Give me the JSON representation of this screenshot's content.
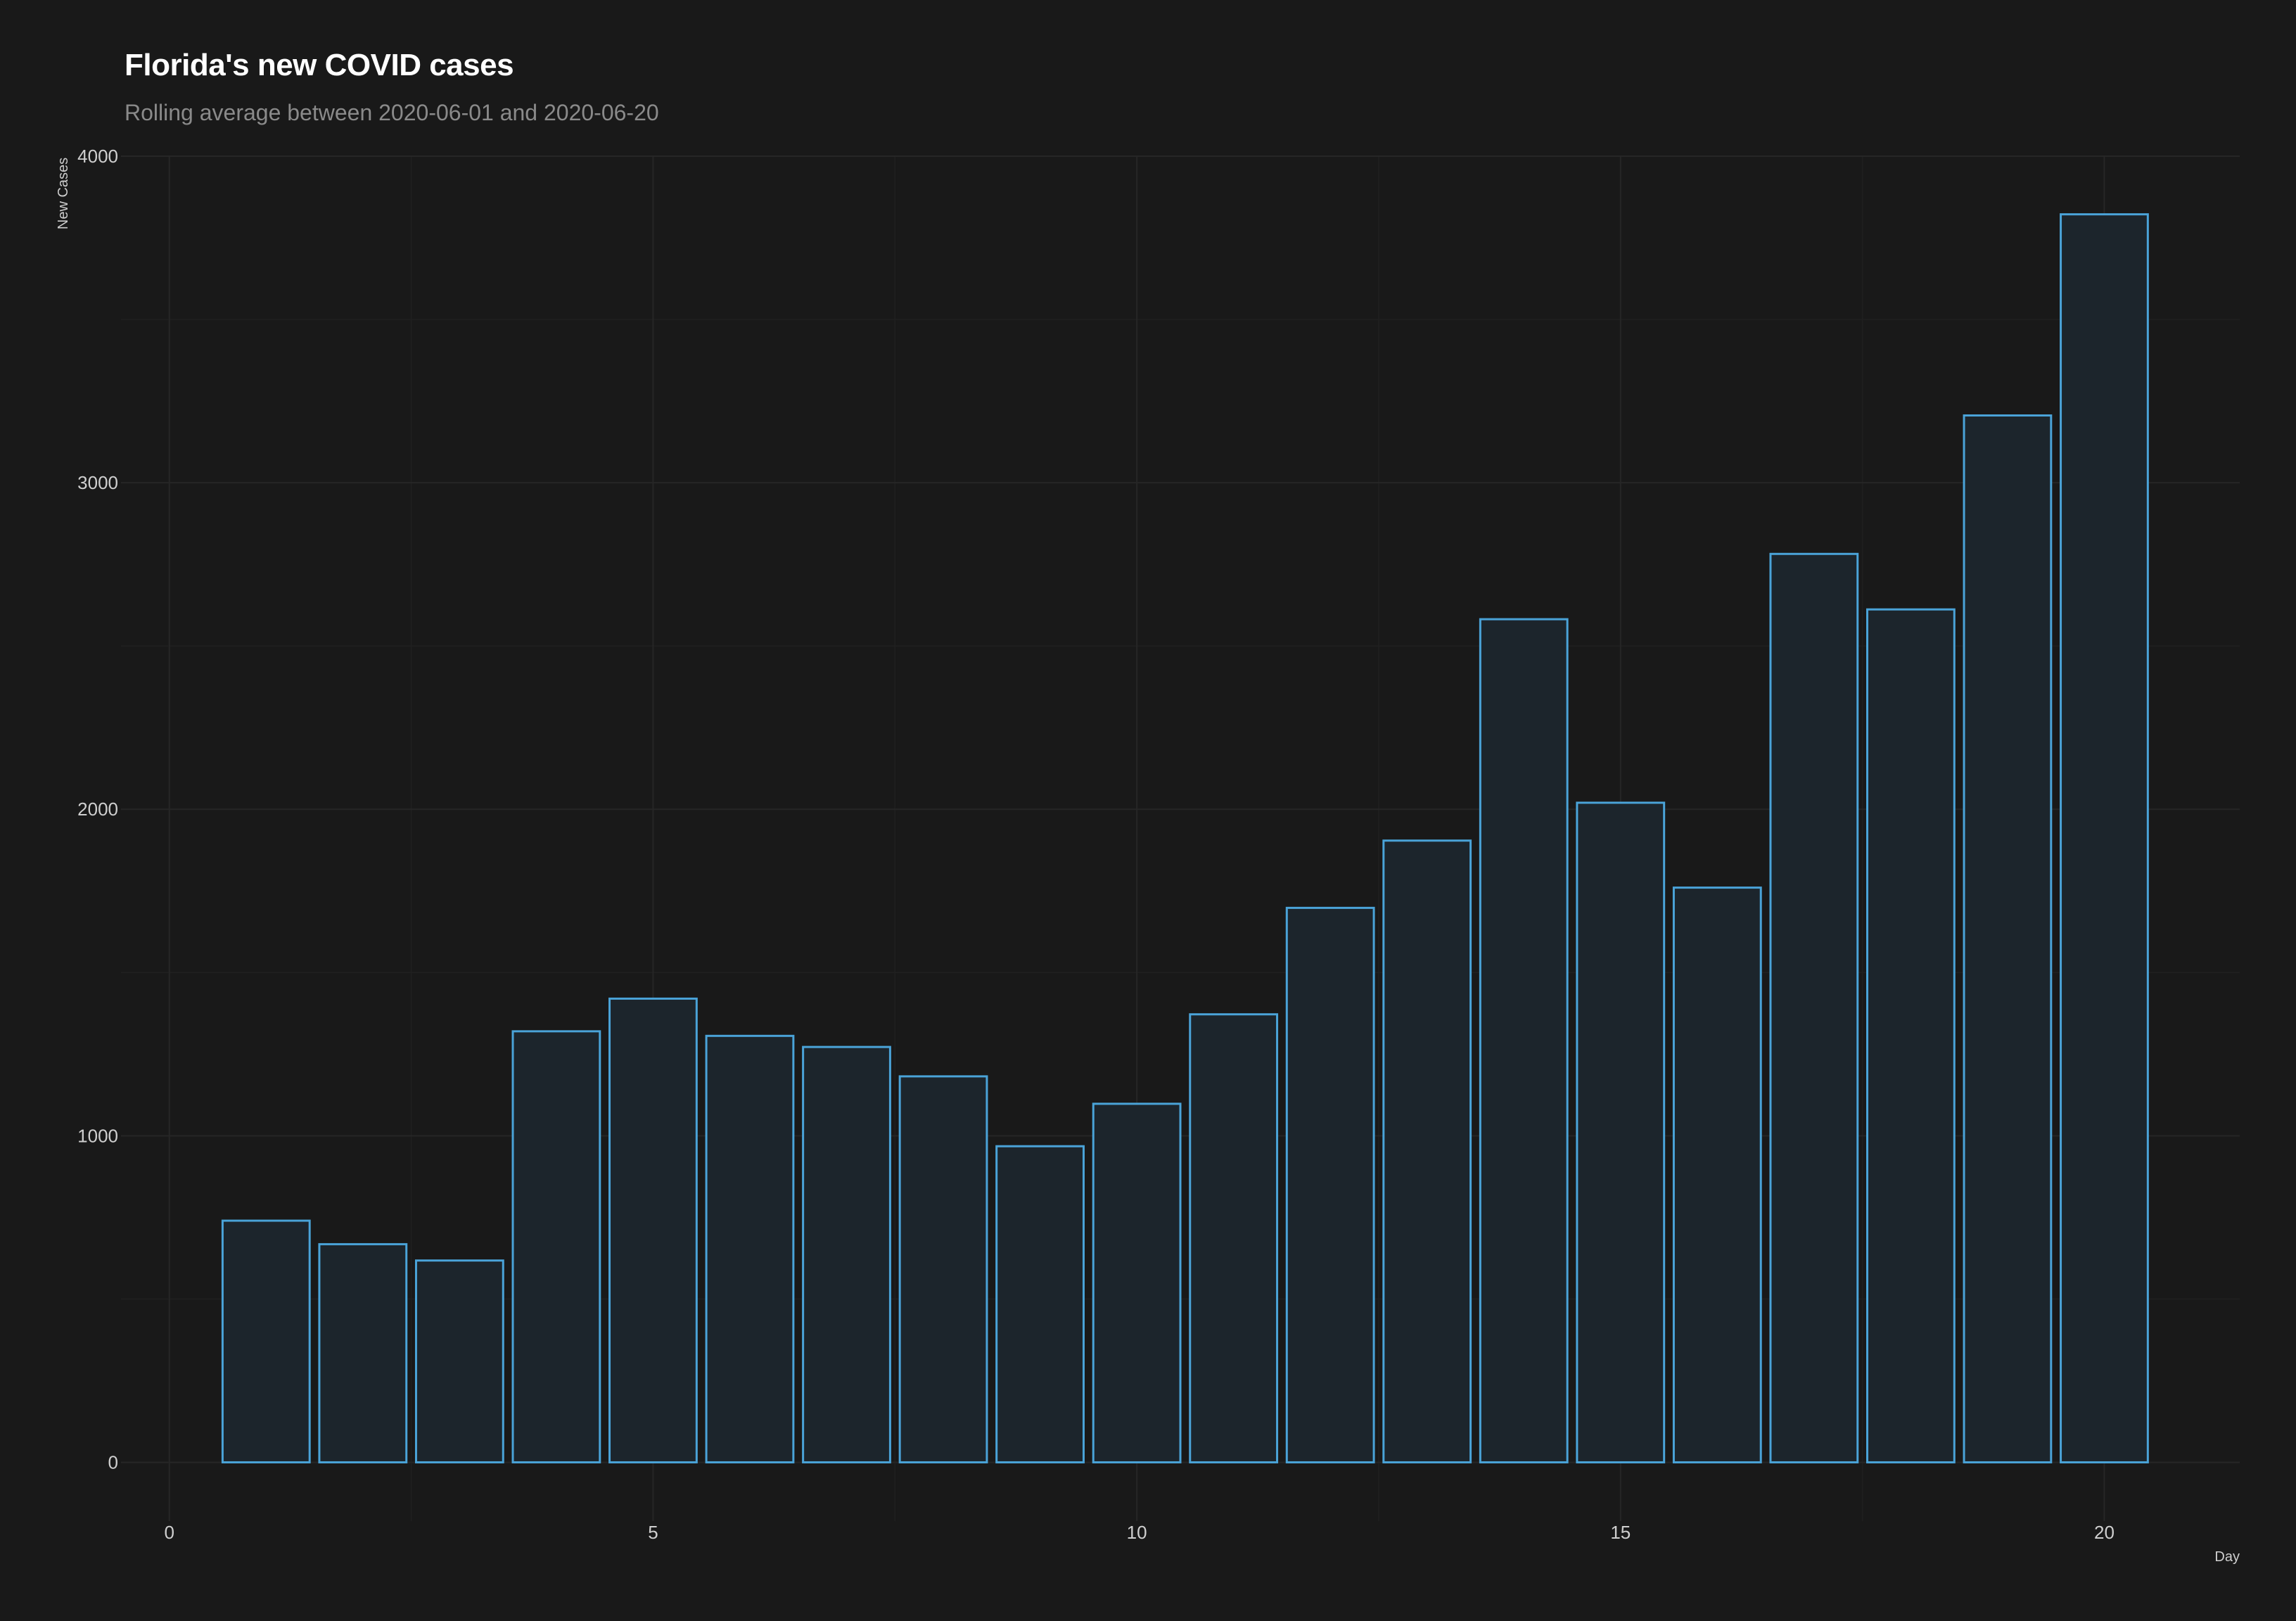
{
  "chart_data": {
    "type": "bar",
    "title": "Florida's new COVID cases",
    "subtitle": "Rolling average between 2020-06-01 and 2020-06-20",
    "xlabel": "Day",
    "ylabel": "New Cases",
    "x": [
      1,
      2,
      3,
      4,
      5,
      6,
      7,
      8,
      9,
      10,
      11,
      12,
      13,
      14,
      15,
      16,
      17,
      18,
      19,
      20
    ],
    "values": [
      740,
      668,
      618,
      1320,
      1420,
      1306,
      1272,
      1182,
      968,
      1098,
      1372,
      1698,
      1904,
      2582,
      2020,
      1760,
      2782,
      2612,
      3206,
      3822
    ],
    "xlim": [
      -0.5,
      21.4
    ],
    "ylim": [
      -180,
      4000
    ],
    "x_ticks": [
      0,
      5,
      10,
      15,
      20
    ],
    "y_ticks": [
      0,
      1000,
      2000,
      3000,
      4000
    ],
    "grid": true,
    "colors": {
      "background": "#191919",
      "bar_stroke": "#4aa3d8",
      "bar_fill": "#1c252c",
      "grid_major": "#262626",
      "grid_minor": "#202020",
      "text": "#cfcfcf",
      "title": "#ffffff",
      "subtitle": "#8a8a8a"
    }
  }
}
